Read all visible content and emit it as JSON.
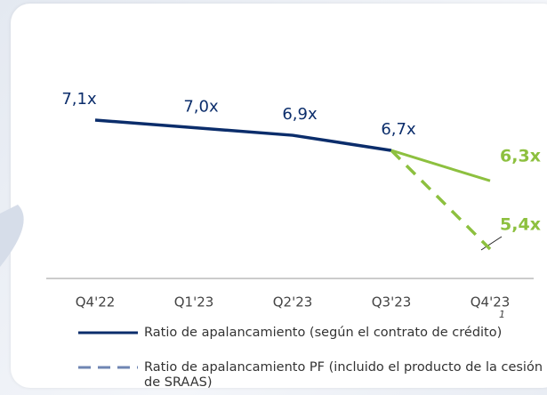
{
  "chart_data": {
    "type": "line",
    "categories": [
      "Q4'22",
      "Q1'23",
      "Q2'23",
      "Q3'23",
      "Q4'23"
    ],
    "footnote": "1",
    "series": [
      {
        "name": "Ratio de apalancamiento (según el contrato de crédito)",
        "color": "#0b2d6b",
        "forecast_color": "#8dc03f",
        "legend_color": "#0b2d6b",
        "dashed": false,
        "values": [
          7.1,
          7.0,
          6.9,
          6.7,
          6.3
        ],
        "value_labels": [
          "7,1x",
          "7,0x",
          "6,9x",
          "6,7x",
          "6,3x"
        ]
      },
      {
        "name": "Ratio de apalancamiento PF (incluido el producto de la cesión de SRAAS)",
        "color": "#8dc03f",
        "legend_color": "#6f86b3",
        "dashed": true,
        "values": [
          null,
          null,
          null,
          6.7,
          5.4
        ],
        "value_labels": [
          null,
          null,
          null,
          null,
          "5,4x"
        ]
      }
    ]
  }
}
